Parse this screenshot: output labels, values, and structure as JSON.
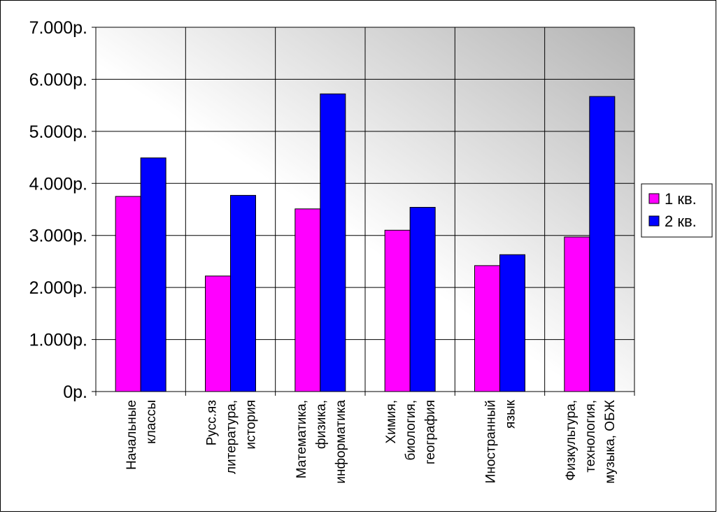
{
  "chart_data": {
    "type": "bar",
    "title": "",
    "xlabel": "",
    "ylabel": "",
    "categories": [
      [
        "Начальные",
        "классы"
      ],
      [
        "Русс.яз",
        "литература,",
        "история"
      ],
      [
        "Математика,",
        "физика,",
        "информатика"
      ],
      [
        "Химия,",
        "биология,",
        "география"
      ],
      [
        "Иностранный",
        "язык"
      ],
      [
        "Физкультура,",
        "технология,",
        "музыка, ОБЖ"
      ]
    ],
    "series": [
      {
        "name": "1 кв.",
        "color": "#ff00ff",
        "values": [
          3750,
          2220,
          3510,
          3100,
          2420,
          2970
        ]
      },
      {
        "name": "2 кв.",
        "color": "#0000ff",
        "values": [
          4490,
          3770,
          5720,
          3540,
          2630,
          5670
        ]
      }
    ],
    "ylim": [
      0,
      7000
    ],
    "yticks": [
      {
        "value": 0,
        "label": "0р."
      },
      {
        "value": 1000,
        "label": "1.000р."
      },
      {
        "value": 2000,
        "label": "2.000р."
      },
      {
        "value": 3000,
        "label": "3.000р."
      },
      {
        "value": 4000,
        "label": "4.000р."
      },
      {
        "value": 5000,
        "label": "5.000р."
      },
      {
        "value": 6000,
        "label": "6.000р."
      },
      {
        "value": 7000,
        "label": "7.000р."
      }
    ],
    "grid": true,
    "legend_position": "right"
  }
}
